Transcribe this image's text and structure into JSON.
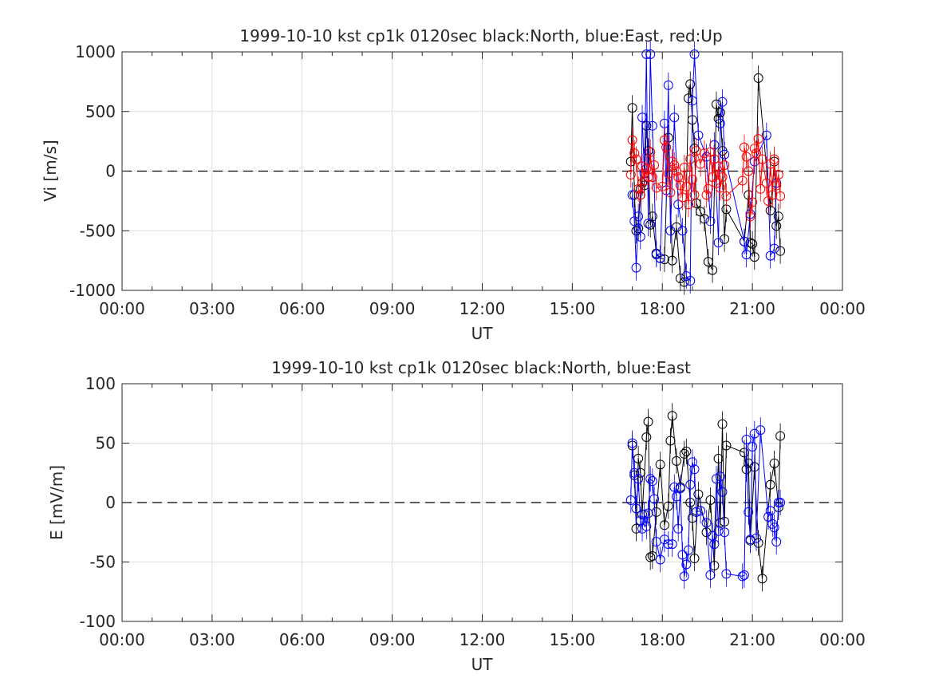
{
  "chart_data": [
    {
      "type": "scatter",
      "title": "1999-10-10 kst cp1k 0120sec black:North, blue:East, red:Up",
      "xlabel": "UT",
      "ylabel": "Vi [m/s]",
      "xlim": [
        0,
        24
      ],
      "ylim": [
        -1000,
        1000
      ],
      "xticks": [
        0,
        3,
        6,
        9,
        12,
        15,
        18,
        21,
        24
      ],
      "xtick_labels": [
        "00:00",
        "03:00",
        "06:00",
        "09:00",
        "12:00",
        "15:00",
        "18:00",
        "21:00",
        "00:00"
      ],
      "yticks": [
        -1000,
        -500,
        0,
        500,
        1000
      ],
      "ytick_labels": [
        "-1000",
        "-500",
        "0",
        "500",
        "1000"
      ],
      "grid": true,
      "zero_line": true,
      "series": [
        {
          "color": "#000000",
          "x": [
            16.95,
            17.0,
            17.07,
            17.13,
            17.2,
            17.27,
            17.33,
            17.4,
            17.47,
            17.53,
            17.6,
            17.67,
            17.8,
            17.93,
            18.07,
            18.2,
            18.33,
            18.47,
            18.6,
            18.73,
            18.87,
            18.93,
            19.0,
            19.07,
            19.13,
            19.27,
            19.4,
            19.53,
            19.67,
            19.8,
            19.87,
            19.93,
            20.0,
            20.07,
            20.13,
            20.73,
            20.87,
            20.93,
            21.0,
            21.07,
            21.2,
            21.6,
            21.73,
            21.8,
            21.87,
            21.93
          ],
          "y": [
            80,
            530,
            -200,
            -500,
            -480,
            -150,
            -100,
            -120,
            380,
            170,
            -450,
            -380,
            -690,
            -730,
            -740,
            280,
            -750,
            -470,
            -900,
            -930,
            610,
            730,
            430,
            190,
            -270,
            -340,
            -400,
            -760,
            -830,
            560,
            440,
            490,
            170,
            -570,
            -320,
            -590,
            -200,
            -600,
            -610,
            -720,
            780,
            -330,
            80,
            -460,
            -380,
            -670
          ]
        },
        {
          "color": "#0000ff",
          "x": [
            17.0,
            17.07,
            17.13,
            17.2,
            17.27,
            17.33,
            17.4,
            17.47,
            17.53,
            17.6,
            17.67,
            17.8,
            17.93,
            18.07,
            18.13,
            18.2,
            18.27,
            18.4,
            18.53,
            18.67,
            18.8,
            18.93,
            19.0,
            19.07,
            19.2,
            19.47,
            19.6,
            19.73,
            19.87,
            19.93,
            20.0,
            20.07,
            20.73,
            20.8,
            20.93,
            21.07,
            21.47,
            21.6,
            21.73,
            21.8
          ],
          "y": [
            -200,
            -420,
            -810,
            -380,
            -550,
            450,
            -20,
            980,
            -440,
            980,
            380,
            -700,
            -730,
            400,
            -160,
            720,
            -500,
            450,
            -280,
            -500,
            -880,
            -920,
            590,
            980,
            300,
            120,
            -420,
            220,
            -600,
            400,
            580,
            140,
            -590,
            -700,
            -360,
            80,
            300,
            -710,
            -650,
            -100
          ]
        },
        {
          "color": "#ff0000",
          "x": [
            16.95,
            17.0,
            17.07,
            17.13,
            17.2,
            17.27,
            17.33,
            17.4,
            17.47,
            17.53,
            17.6,
            17.67,
            17.73,
            17.8,
            18.0,
            18.07,
            18.13,
            18.2,
            18.27,
            18.33,
            18.4,
            18.47,
            18.53,
            18.6,
            18.67,
            18.73,
            18.8,
            18.87,
            18.93,
            19.0,
            19.07,
            19.13,
            19.27,
            19.4,
            19.47,
            19.53,
            19.6,
            19.67,
            19.73,
            19.8,
            19.87,
            19.93,
            20.0,
            20.07,
            20.13,
            20.67,
            20.73,
            20.8,
            20.87,
            20.93,
            21.0,
            21.07,
            21.13,
            21.2,
            21.27,
            21.33,
            21.47,
            21.53,
            21.6,
            21.67,
            21.73,
            21.8,
            21.87,
            21.93
          ],
          "y": [
            -30,
            260,
            150,
            100,
            -150,
            -200,
            40,
            -80,
            20,
            -50,
            160,
            -50,
            50,
            -140,
            -130,
            260,
            200,
            -20,
            -180,
            80,
            50,
            0,
            -50,
            -120,
            -220,
            30,
            -130,
            -280,
            100,
            -70,
            -200,
            170,
            60,
            150,
            -200,
            -150,
            160,
            -50,
            100,
            -100,
            40,
            -140,
            -50,
            50,
            -210,
            -80,
            200,
            120,
            0,
            -380,
            -260,
            190,
            150,
            270,
            -150,
            100,
            -100,
            -250,
            60,
            -200,
            100,
            -120,
            -30,
            -210
          ]
        }
      ]
    },
    {
      "type": "scatter",
      "title": "1999-10-10 kst cp1k 0120sec black:North, blue:East",
      "xlabel": "UT",
      "ylabel": "E [mV/m]",
      "xlim": [
        0,
        24
      ],
      "ylim": [
        -100,
        100
      ],
      "xticks": [
        0,
        3,
        6,
        9,
        12,
        15,
        18,
        21,
        24
      ],
      "xtick_labels": [
        "00:00",
        "03:00",
        "06:00",
        "09:00",
        "12:00",
        "15:00",
        "18:00",
        "21:00",
        "00:00"
      ],
      "yticks": [
        -100,
        -50,
        0,
        50,
        100
      ],
      "ytick_labels": [
        "-100",
        "-50",
        "0",
        "50",
        "100"
      ],
      "grid": true,
      "zero_line": true,
      "series": [
        {
          "color": "#000000",
          "x": [
            17.0,
            17.07,
            17.13,
            17.2,
            17.27,
            17.33,
            17.47,
            17.53,
            17.6,
            17.67,
            17.8,
            17.93,
            18.07,
            18.2,
            18.27,
            18.33,
            18.47,
            18.6,
            18.73,
            18.8,
            18.93,
            19.0,
            19.07,
            19.2,
            19.47,
            19.6,
            19.73,
            19.87,
            19.93,
            20.0,
            20.07,
            20.13,
            20.73,
            20.8,
            20.87,
            20.93,
            21.07,
            21.2,
            21.33,
            21.6,
            21.73,
            21.87,
            21.93
          ],
          "y": [
            48,
            23,
            -22,
            37,
            25,
            -10,
            55,
            68,
            -46,
            -45,
            -8,
            32,
            -19,
            -3,
            52,
            73,
            35,
            13,
            41,
            43,
            0,
            -13,
            -47,
            7,
            -25,
            2,
            -53,
            37,
            -17,
            66,
            -16,
            48,
            42,
            28,
            33,
            -32,
            30,
            -34,
            -64,
            15,
            33,
            -4,
            56
          ]
        },
        {
          "color": "#0000ff",
          "x": [
            16.95,
            17.0,
            17.07,
            17.13,
            17.2,
            17.27,
            17.33,
            17.4,
            17.47,
            17.53,
            17.6,
            17.67,
            17.73,
            17.8,
            17.93,
            18.07,
            18.2,
            18.33,
            18.4,
            18.47,
            18.53,
            18.6,
            18.67,
            18.73,
            18.8,
            18.87,
            18.93,
            19.0,
            19.07,
            19.13,
            19.27,
            19.47,
            19.6,
            19.67,
            19.73,
            19.8,
            19.87,
            19.93,
            20.0,
            20.07,
            20.13,
            20.67,
            20.73,
            20.8,
            20.87,
            20.93,
            21.0,
            21.07,
            21.13,
            21.27,
            21.53,
            21.6,
            21.67,
            21.73,
            21.8,
            21.87,
            21.93
          ],
          "y": [
            2,
            50,
            25,
            -5,
            20,
            -15,
            -22,
            -10,
            -20,
            -9,
            20,
            18,
            3,
            -33,
            -48,
            -31,
            -35,
            -35,
            13,
            5,
            -22,
            12,
            -44,
            -62,
            -52,
            -40,
            15,
            34,
            28,
            -8,
            -7,
            -17,
            -61,
            -28,
            -35,
            20,
            -24,
            22,
            9,
            -25,
            -60,
            -62,
            -61,
            53,
            -8,
            -31,
            47,
            58,
            -30,
            61,
            -12,
            -7,
            -18,
            -21,
            -33,
            0,
            0
          ]
        }
      ]
    }
  ]
}
